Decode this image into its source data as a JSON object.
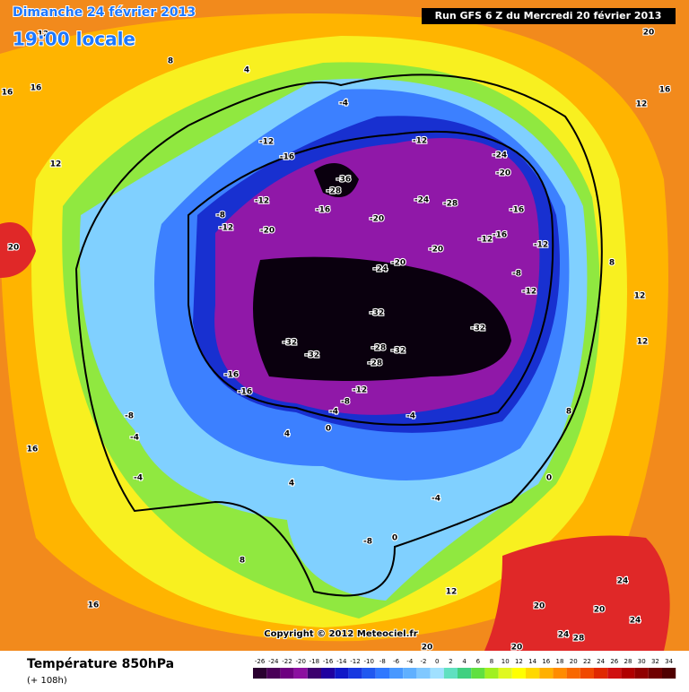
{
  "header": {
    "date": "Dimanche 24 février 2013",
    "time": "19:00 locale",
    "run": "Run GFS 6 Z du Mercredi 20 février 2013"
  },
  "map": {
    "copyright": "Copyright © 2012 Meteociel.fr",
    "labels": [
      "12",
      "8",
      "4",
      "16",
      "16",
      "-4",
      "-12",
      "-16",
      "-12",
      "-24",
      "-20",
      "-36",
      "-28",
      "-24",
      "-28",
      "-16",
      "-20",
      "-8",
      "-12",
      "-12",
      "-20",
      "-16",
      "-12",
      "-16",
      "-12",
      "-20",
      "-24",
      "-20",
      "-8",
      "-12",
      "-32",
      "-32",
      "-32",
      "-32",
      "-28",
      "-32",
      "-28",
      "-16",
      "-12",
      "-16",
      "-8",
      "-4",
      "-4",
      "0",
      "4",
      "-8",
      "-4",
      "16",
      "-4",
      "4",
      "-4",
      "0",
      "-8",
      "0",
      "8",
      "12",
      "20",
      "24",
      "20",
      "24",
      "24",
      "28",
      "20",
      "20",
      "16",
      "20",
      "12",
      "12",
      "8",
      "12",
      "12",
      "8",
      "20",
      "16"
    ]
  },
  "footer": {
    "title": "Température 850hPa",
    "lead": "(+ 108h)"
  },
  "colorbar": {
    "ticks": [
      -26,
      -24,
      -22,
      -20,
      -18,
      -16,
      -14,
      -12,
      -10,
      -8,
      -6,
      -4,
      -2,
      0,
      2,
      4,
      6,
      8,
      10,
      12,
      14,
      16,
      18,
      20,
      22,
      24,
      26,
      28,
      30,
      32,
      34
    ],
    "colors": [
      "#2a0030",
      "#4a0058",
      "#6e0080",
      "#8c10a0",
      "#3c006e",
      "#2000a0",
      "#1018c8",
      "#1838e0",
      "#2058f0",
      "#3078ff",
      "#4898ff",
      "#60b0ff",
      "#80c8ff",
      "#a0e0ff",
      "#60e0c0",
      "#40d080",
      "#60e040",
      "#a0f020",
      "#e0f820",
      "#ffff00",
      "#ffd800",
      "#ffb000",
      "#ff8c00",
      "#f86800",
      "#f04800",
      "#e02800",
      "#d01010",
      "#b00000",
      "#900000",
      "#700000",
      "#500000"
    ]
  }
}
